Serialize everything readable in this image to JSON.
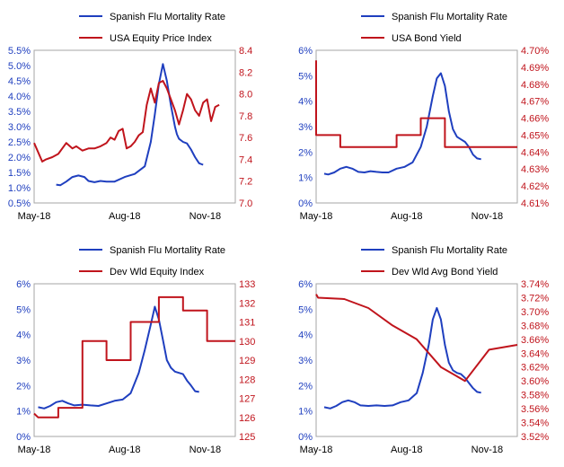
{
  "colors": {
    "blue": "#1f3fbf",
    "red": "#c0141c",
    "frame": "#a6a6a6",
    "text": "#000000"
  },
  "chart_data": [
    {
      "type": "line",
      "title": "",
      "x_ticks": [
        "May-18",
        "Aug-18",
        "Nov-18"
      ],
      "grid": false,
      "legend_position": "top",
      "left_axis": {
        "ticks": [
          "0.5%",
          "1.0%",
          "1.5%",
          "2.0%",
          "2.5%",
          "3.0%",
          "3.5%",
          "4.0%",
          "4.5%",
          "5.0%",
          "5.5%"
        ],
        "range": [
          0.5,
          5.5
        ],
        "color": "#1f3fbf"
      },
      "right_axis": {
        "ticks": [
          "7.0",
          "7.2",
          "7.4",
          "7.6",
          "7.8",
          "8.0",
          "8.2",
          "8.4"
        ],
        "range": [
          7.0,
          8.4
        ],
        "color": "#c0141c"
      },
      "series": [
        {
          "name": "Spanish Flu Mortality Rate",
          "axis": "left",
          "color": "#1f3fbf",
          "x": [
            0.11,
            0.13,
            0.16,
            0.19,
            0.22,
            0.25,
            0.27,
            0.3,
            0.33,
            0.36,
            0.4,
            0.45,
            0.5,
            0.55,
            0.58,
            0.6,
            0.62,
            0.64,
            0.66,
            0.68,
            0.7,
            0.71,
            0.72,
            0.74,
            0.76,
            0.78,
            0.8,
            0.82,
            0.84,
            0.86,
            0.88,
            0.9
          ],
          "values": [
            1.1,
            1.08,
            1.2,
            1.35,
            1.4,
            1.35,
            1.22,
            1.18,
            1.22,
            1.2,
            1.2,
            1.35,
            1.45,
            1.7,
            2.5,
            3.4,
            4.4,
            5.05,
            4.5,
            3.7,
            3.0,
            2.75,
            2.6,
            2.5,
            2.45,
            2.25,
            2.0,
            1.8,
            1.75,
            null,
            null,
            null
          ]
        },
        {
          "name": "USA Equity Price Index",
          "axis": "right",
          "color": "#c0141c",
          "x": [
            0.0,
            0.04,
            0.06,
            0.09,
            0.12,
            0.16,
            0.19,
            0.21,
            0.24,
            0.27,
            0.3,
            0.33,
            0.36,
            0.38,
            0.4,
            0.42,
            0.44,
            0.46,
            0.48,
            0.5,
            0.52,
            0.54,
            0.56,
            0.58,
            0.6,
            0.62,
            0.64,
            0.66,
            0.68,
            0.7,
            0.72,
            0.74,
            0.76,
            0.78,
            0.8,
            0.82,
            0.84,
            0.86,
            0.88,
            0.9,
            0.92
          ],
          "values": [
            7.55,
            7.38,
            7.4,
            7.42,
            7.45,
            7.55,
            7.5,
            7.52,
            7.48,
            7.5,
            7.5,
            7.52,
            7.55,
            7.6,
            7.58,
            7.66,
            7.68,
            7.5,
            7.52,
            7.56,
            7.62,
            7.65,
            7.9,
            8.05,
            7.92,
            8.1,
            8.12,
            8.05,
            7.95,
            7.85,
            7.72,
            7.85,
            8.0,
            7.95,
            7.85,
            7.8,
            7.92,
            7.95,
            7.75,
            7.88,
            7.9
          ]
        }
      ]
    },
    {
      "type": "line",
      "title": "",
      "x_ticks": [
        "May-18",
        "Aug-18",
        "Nov-18"
      ],
      "grid": false,
      "legend_position": "top",
      "left_axis": {
        "ticks": [
          "0%",
          "1%",
          "2%",
          "3%",
          "4%",
          "5%",
          "6%"
        ],
        "range": [
          0,
          6
        ],
        "color": "#1f3fbf"
      },
      "right_axis": {
        "ticks": [
          "4.61%",
          "4.62%",
          "4.63%",
          "4.64%",
          "4.65%",
          "4.66%",
          "4.67%",
          "4.68%",
          "4.69%",
          "4.70%"
        ],
        "range": [
          4.61,
          4.7
        ],
        "color": "#c0141c"
      },
      "series": [
        {
          "name": "Spanish Flu Mortality Rate",
          "axis": "left",
          "color": "#1f3fbf",
          "x": [
            0.04,
            0.06,
            0.09,
            0.12,
            0.15,
            0.18,
            0.21,
            0.24,
            0.27,
            0.3,
            0.33,
            0.36,
            0.4,
            0.44,
            0.48,
            0.52,
            0.55,
            0.58,
            0.6,
            0.62,
            0.64,
            0.66,
            0.68,
            0.7,
            0.72,
            0.74,
            0.76,
            0.78,
            0.8,
            0.82,
            0.84,
            0.86
          ],
          "values": [
            1.15,
            1.12,
            1.2,
            1.35,
            1.42,
            1.35,
            1.22,
            1.2,
            1.25,
            1.22,
            1.2,
            1.2,
            1.35,
            1.42,
            1.6,
            2.2,
            3.0,
            4.2,
            4.9,
            5.1,
            4.6,
            3.6,
            2.9,
            2.6,
            2.5,
            2.4,
            2.2,
            1.9,
            1.75,
            1.72,
            null,
            null
          ]
        },
        {
          "name": "USA Bond Yield",
          "axis": "right",
          "color": "#c0141c",
          "x": [
            0.0,
            0.0,
            0.12,
            0.12,
            0.4,
            0.4,
            0.52,
            0.52,
            0.64,
            0.64,
            1.0
          ],
          "values": [
            4.694,
            4.65,
            4.65,
            4.643,
            4.643,
            4.65,
            4.65,
            4.66,
            4.66,
            4.643,
            4.643
          ]
        }
      ]
    },
    {
      "type": "line",
      "title": "",
      "x_ticks": [
        "May-18",
        "Aug-18",
        "Nov-18"
      ],
      "grid": false,
      "legend_position": "top",
      "left_axis": {
        "ticks": [
          "0%",
          "1%",
          "2%",
          "3%",
          "4%",
          "5%",
          "6%"
        ],
        "range": [
          0,
          6
        ],
        "color": "#1f3fbf"
      },
      "right_axis": {
        "ticks": [
          "125",
          "126",
          "127",
          "128",
          "129",
          "130",
          "131",
          "132",
          "133"
        ],
        "range": [
          125,
          133
        ],
        "color": "#c0141c"
      },
      "series": [
        {
          "name": "Spanish Flu Mortality Rate",
          "axis": "left",
          "color": "#1f3fbf",
          "x": [
            0.02,
            0.05,
            0.08,
            0.11,
            0.14,
            0.17,
            0.2,
            0.24,
            0.28,
            0.32,
            0.36,
            0.4,
            0.44,
            0.48,
            0.52,
            0.55,
            0.58,
            0.6,
            0.62,
            0.64,
            0.66,
            0.68,
            0.7,
            0.72,
            0.74,
            0.76,
            0.78,
            0.8,
            0.82,
            0.84
          ],
          "values": [
            1.15,
            1.1,
            1.2,
            1.35,
            1.4,
            1.3,
            1.22,
            1.25,
            1.22,
            1.2,
            1.3,
            1.4,
            1.45,
            1.7,
            2.5,
            3.4,
            4.4,
            5.1,
            4.6,
            3.8,
            3.0,
            2.7,
            2.55,
            2.5,
            2.45,
            2.2,
            2.0,
            1.78,
            1.75,
            null
          ]
        },
        {
          "name": "Dev Wld Equity Index",
          "axis": "right",
          "color": "#c0141c",
          "x": [
            0.0,
            0.02,
            0.02,
            0.12,
            0.12,
            0.24,
            0.24,
            0.36,
            0.36,
            0.48,
            0.48,
            0.62,
            0.62,
            0.74,
            0.74,
            0.86,
            0.86,
            1.0
          ],
          "values": [
            126.2,
            126.0,
            126.0,
            126.0,
            126.5,
            126.5,
            130.0,
            130.0,
            129.0,
            129.0,
            131.0,
            131.0,
            132.3,
            132.3,
            131.6,
            131.6,
            130.0,
            130.0
          ]
        }
      ]
    },
    {
      "type": "line",
      "title": "",
      "x_ticks": [
        "May-18",
        "Aug-18",
        "Nov-18"
      ],
      "grid": false,
      "legend_position": "top",
      "left_axis": {
        "ticks": [
          "0%",
          "1%",
          "2%",
          "3%",
          "4%",
          "5%",
          "6%"
        ],
        "range": [
          0,
          6
        ],
        "color": "#1f3fbf"
      },
      "right_axis": {
        "ticks": [
          "3.52%",
          "3.54%",
          "3.56%",
          "3.58%",
          "3.60%",
          "3.62%",
          "3.64%",
          "3.66%",
          "3.68%",
          "3.70%",
          "3.72%",
          "3.74%"
        ],
        "range": [
          3.52,
          3.74
        ],
        "color": "#c0141c"
      },
      "series": [
        {
          "name": "Spanish Flu Mortality Rate",
          "axis": "left",
          "color": "#1f3fbf",
          "x": [
            0.04,
            0.07,
            0.1,
            0.13,
            0.16,
            0.19,
            0.22,
            0.26,
            0.3,
            0.34,
            0.38,
            0.42,
            0.46,
            0.5,
            0.53,
            0.56,
            0.58,
            0.6,
            0.62,
            0.64,
            0.66,
            0.68,
            0.7,
            0.72,
            0.74,
            0.76,
            0.78,
            0.8,
            0.82,
            0.84
          ],
          "values": [
            1.15,
            1.1,
            1.2,
            1.35,
            1.42,
            1.35,
            1.22,
            1.2,
            1.22,
            1.2,
            1.22,
            1.35,
            1.42,
            1.7,
            2.5,
            3.6,
            4.6,
            5.05,
            4.6,
            3.6,
            2.9,
            2.6,
            2.5,
            2.45,
            2.3,
            2.1,
            1.9,
            1.75,
            1.72,
            null
          ]
        },
        {
          "name": "Dev Wld Avg Bond Yield",
          "axis": "right",
          "color": "#c0141c",
          "x": [
            0.0,
            0.01,
            0.01,
            0.14,
            0.14,
            0.26,
            0.26,
            0.38,
            0.38,
            0.5,
            0.5,
            0.62,
            0.62,
            0.74,
            0.74,
            0.86,
            0.86,
            1.0
          ],
          "values": [
            3.725,
            3.72,
            3.72,
            3.718,
            3.718,
            3.705,
            3.705,
            3.68,
            3.68,
            3.66,
            3.66,
            3.62,
            3.62,
            3.6,
            3.6,
            3.645,
            3.645,
            3.652
          ]
        }
      ]
    }
  ]
}
